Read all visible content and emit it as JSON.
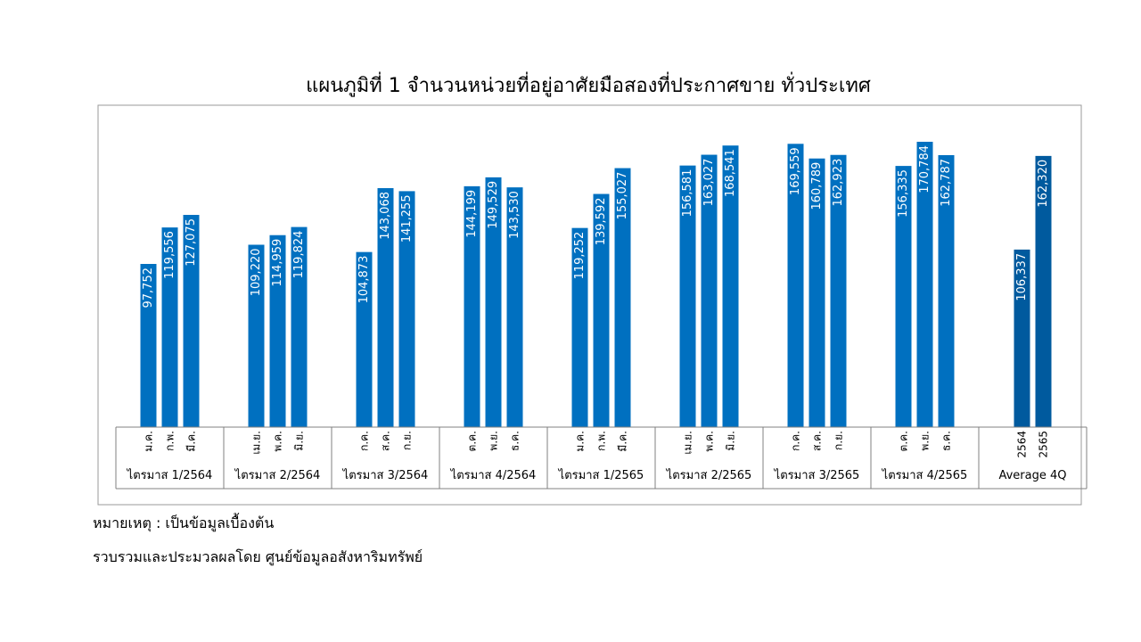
{
  "chart_data": {
    "type": "bar",
    "title": "แผนภูมิที่ 1 จำนวนหน่วยที่อยู่อาศัยมือสองที่ประกาศขาย ทั่วประเทศ",
    "xlabel": "",
    "ylabel": "",
    "ylim": [
      0,
      175000
    ],
    "grid": false,
    "groups": [
      {
        "label": "ไตรมาส 1/2564",
        "bars": [
          {
            "cat": "ม.ค.",
            "value": 97752,
            "label": "97,752"
          },
          {
            "cat": "ก.พ.",
            "value": 119556,
            "label": "119,556"
          },
          {
            "cat": "มี.ค.",
            "value": 127075,
            "label": "127,075"
          }
        ]
      },
      {
        "label": "ไตรมาส 2/2564",
        "bars": [
          {
            "cat": "เม.ย.",
            "value": 109220,
            "label": "109,220"
          },
          {
            "cat": "พ.ค.",
            "value": 114959,
            "label": "114,959"
          },
          {
            "cat": "มิ.ย.",
            "value": 119824,
            "label": "119,824"
          }
        ]
      },
      {
        "label": "ไตรมาส 3/2564",
        "bars": [
          {
            "cat": "ก.ค.",
            "value": 104873,
            "label": "104,873"
          },
          {
            "cat": "ส.ค.",
            "value": 143068,
            "label": "143,068"
          },
          {
            "cat": "ก.ย.",
            "value": 141255,
            "label": "141,255"
          }
        ]
      },
      {
        "label": "ไตรมาส 4/2564",
        "bars": [
          {
            "cat": "ต.ค.",
            "value": 144199,
            "label": "144,199"
          },
          {
            "cat": "พ.ย.",
            "value": 149529,
            "label": "149,529"
          },
          {
            "cat": "ธ.ค.",
            "value": 143530,
            "label": "143,530"
          }
        ]
      },
      {
        "label": "ไตรมาส 1/2565",
        "bars": [
          {
            "cat": "ม.ค.",
            "value": 119252,
            "label": "119,252"
          },
          {
            "cat": "ก.พ.",
            "value": 139592,
            "label": "139,592"
          },
          {
            "cat": "มี.ค.",
            "value": 155027,
            "label": "155,027"
          }
        ]
      },
      {
        "label": "ไตรมาส 2/2565",
        "bars": [
          {
            "cat": "เม.ย.",
            "value": 156581,
            "label": "156,581"
          },
          {
            "cat": "พ.ค.",
            "value": 163027,
            "label": "163,027"
          },
          {
            "cat": "มิ.ย.",
            "value": 168541,
            "label": "168,541"
          }
        ]
      },
      {
        "label": "ไตรมาส 3/2565",
        "bars": [
          {
            "cat": "ก.ค.",
            "value": 169559,
            "label": "169,559"
          },
          {
            "cat": "ส.ค.",
            "value": 160789,
            "label": "160,789"
          },
          {
            "cat": "ก.ย.",
            "value": 162923,
            "label": "162,923"
          }
        ]
      },
      {
        "label": "ไตรมาส 4/2565",
        "bars": [
          {
            "cat": "ต.ค.",
            "value": 156335,
            "label": "156,335"
          },
          {
            "cat": "พ.ย.",
            "value": 170784,
            "label": "170,784"
          },
          {
            "cat": "ธ.ค.",
            "value": 162787,
            "label": "162,787"
          }
        ]
      },
      {
        "label": "Average 4Q",
        "bars": [
          {
            "cat": "2564",
            "value": 106337,
            "label": "106,337"
          },
          {
            "cat": "2565",
            "value": 162320,
            "label": "162,320"
          }
        ]
      }
    ],
    "colors": {
      "monthly": "#0070C0",
      "average": "#005A9E"
    }
  },
  "notes": {
    "note_1": "หมายเหตุ : เป็นข้อมูลเบื้องต้น",
    "note_2": "รวบรวมและประมวลผลโดย ศูนย์ข้อมูลอสังหาริมทรัพย์"
  }
}
